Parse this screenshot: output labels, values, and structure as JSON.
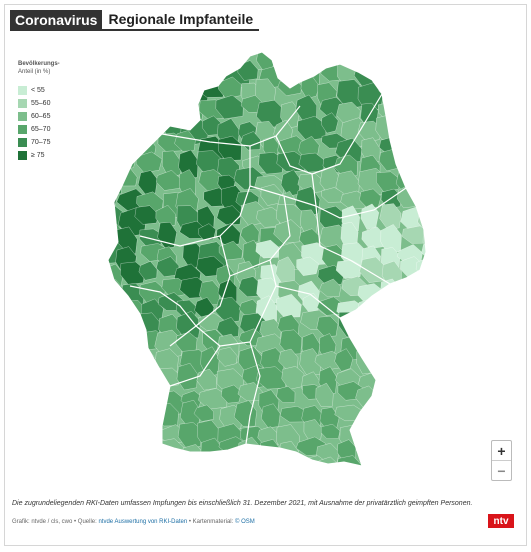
{
  "header": {
    "tag": "Coronavirus",
    "title": "Regionale Impfanteile"
  },
  "legend": {
    "title": "Bevölkerungs-",
    "subtitle": "Anteil (in %)",
    "items": [
      {
        "label": "< 55",
        "color": "#c8edd4"
      },
      {
        "label": "55–60",
        "color": "#a6d7b2"
      },
      {
        "label": "60–65",
        "color": "#7dbe8c"
      },
      {
        "label": "65–70",
        "color": "#58a66b"
      },
      {
        "label": "70–75",
        "color": "#3a8d52"
      },
      {
        "label": "≥ 75",
        "color": "#1f7238"
      }
    ]
  },
  "zoom": {
    "in": "+",
    "out": "−"
  },
  "footnote": "Die zugrundeliegenden RKI-Daten umfassen Impfungen bis einschließlich 31. Dezember 2021, mit Ausnahme der privatärztlich geimpften Personen.",
  "credit": {
    "prefix": "Grafik: ntvde / cls, cwo • Quelle: ",
    "source_link": "ntvde Auswertung von RKI-Daten",
    "middle": " • Kartenmaterial: ",
    "map_link": "© OSM"
  },
  "logo": "ntv"
}
